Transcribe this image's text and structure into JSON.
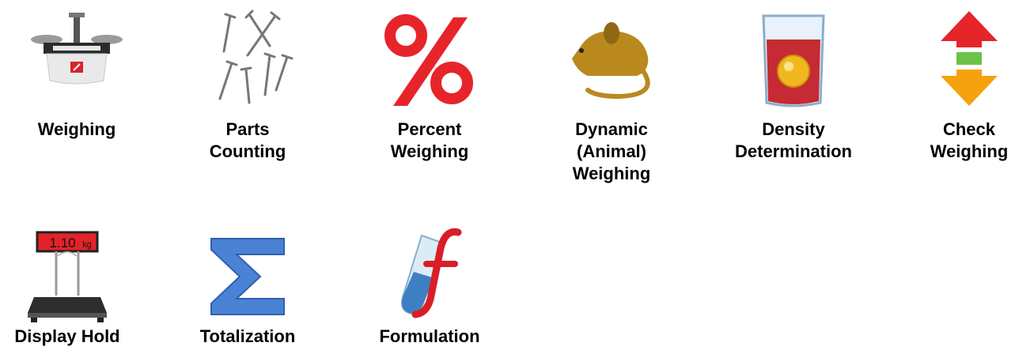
{
  "apps": [
    {
      "id": "weighing",
      "label": "Weighing",
      "icon": "weighing-scale-icon"
    },
    {
      "id": "parts-counting",
      "label": "Parts\nCounting",
      "icon": "nails-icon"
    },
    {
      "id": "percent-weighing",
      "label": "Percent\nWeighing",
      "icon": "percent-icon"
    },
    {
      "id": "dynamic-weighing",
      "label": "Dynamic\n(Animal)\nWeighing",
      "icon": "mouse-icon"
    },
    {
      "id": "density-determination",
      "label": "Density\nDetermination",
      "icon": "beaker-icon"
    },
    {
      "id": "check-weighing",
      "label": "Check\nWeighing",
      "icon": "check-arrows-icon"
    },
    {
      "id": "display-hold",
      "label": "Display Hold",
      "icon": "platform-scale-icon",
      "display_value": "1.10",
      "display_unit": "kg"
    },
    {
      "id": "totalization",
      "label": "Totalization",
      "icon": "sigma-icon"
    },
    {
      "id": "formulation",
      "label": "Formulation",
      "icon": "test-tube-f-icon"
    }
  ],
  "colors": {
    "percent": "#e8242b",
    "sigma": "#4a82d6",
    "arrow_up": "#e5252a",
    "arrow_down": "#f5a20f",
    "arrow_mid": "#6cc24a",
    "mouse": "#b9891e",
    "beaker_liquid": "#c62a32"
  }
}
